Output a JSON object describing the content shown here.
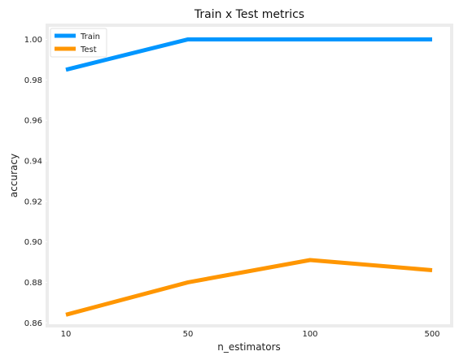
{
  "chart_data": {
    "type": "line",
    "title": "Train x Test metrics",
    "xlabel": "n_estimators",
    "ylabel": "accuracy",
    "categories": [
      "10",
      "50",
      "100",
      "500"
    ],
    "ylim": [
      0.8585,
      1.007
    ],
    "yticks": [
      0.86,
      0.88,
      0.9,
      0.92,
      0.94,
      0.96,
      0.98,
      1.0
    ],
    "ytick_labels": [
      "0.86",
      "0.88",
      "0.90",
      "0.92",
      "0.94",
      "0.96",
      "0.98",
      "1.00"
    ],
    "grid": false,
    "legend_position": "top-left",
    "series": [
      {
        "name": "Train",
        "color": "#0096ff",
        "values": [
          0.985,
          1.0,
          1.0,
          1.0
        ]
      },
      {
        "name": "Test",
        "color": "#ff9600",
        "values": [
          0.864,
          0.88,
          0.891,
          0.886
        ]
      }
    ],
    "background": "#ffffff",
    "frame_color": "#ececec"
  }
}
